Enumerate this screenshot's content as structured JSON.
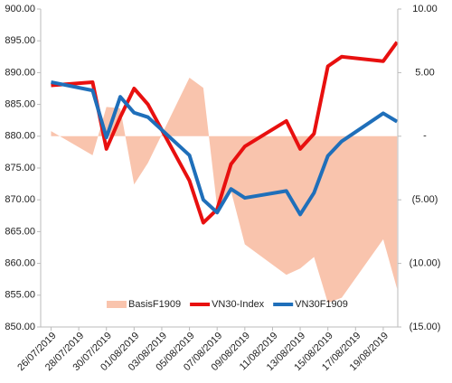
{
  "chart_data": {
    "type": "combo",
    "x": [
      "26/07/2019",
      "29/07/2019",
      "30/07/2019",
      "31/07/2019",
      "01/08/2019",
      "02/08/2019",
      "05/08/2019",
      "06/08/2019",
      "07/08/2019",
      "08/08/2019",
      "09/08/2019",
      "12/08/2019",
      "13/08/2019",
      "14/08/2019",
      "15/08/2019",
      "16/08/2019",
      "19/08/2019",
      "20/08/2019"
    ],
    "xticks": [
      "26/07/2019",
      "28/07/2019",
      "30/07/2019",
      "01/08/2019",
      "03/08/2019",
      "05/08/2019",
      "07/08/2019",
      "09/08/2019",
      "11/08/2019",
      "13/08/2019",
      "15/08/2019",
      "17/08/2019",
      "19/08/2019"
    ],
    "ylim": [
      850,
      900
    ],
    "yticks": [
      {
        "value": 850,
        "label": "850.00"
      },
      {
        "value": 855,
        "label": "855.00"
      },
      {
        "value": 860,
        "label": "860.00"
      },
      {
        "value": 865,
        "label": "865.00"
      },
      {
        "value": 870,
        "label": "870.00"
      },
      {
        "value": 875,
        "label": "875.00"
      },
      {
        "value": 880,
        "label": "880.00"
      },
      {
        "value": 885,
        "label": "885.00"
      },
      {
        "value": 890,
        "label": "890.00"
      },
      {
        "value": 895,
        "label": "895.00"
      },
      {
        "value": 900,
        "label": "900.00"
      }
    ],
    "y2lim": [
      -15,
      10
    ],
    "y2ticks": [
      {
        "value": -15,
        "label": "(15.00)"
      },
      {
        "value": -10,
        "label": "(10.00)"
      },
      {
        "value": -5,
        "label": "(5.00)"
      },
      {
        "value": 0,
        "label": "-"
      },
      {
        "value": 5,
        "label": "5.00"
      },
      {
        "value": 10,
        "label": "10.00"
      }
    ],
    "legend": "bottom",
    "series": [
      {
        "name": "BasisF1909",
        "type": "area",
        "axis": "y2",
        "color": "#f9c4ad",
        "values": [
          0.4,
          -1.5,
          2.3,
          2.2,
          -3.8,
          -2.1,
          4.6,
          3.8,
          -5.6,
          -4.3,
          -8.5,
          -10.9,
          -10.4,
          -9.5,
          -13.1,
          -12.7,
          -8.1,
          -12
        ]
      },
      {
        "name": "VN30-Index",
        "type": "line",
        "color": "#e8100f",
        "values": [
          888,
          888.5,
          878,
          883,
          887.5,
          885,
          873,
          866.4,
          868.5,
          875.6,
          878.4,
          882.4,
          878,
          880.4,
          891,
          892.5,
          891.8,
          894.8
        ]
      },
      {
        "name": "VN30F1909",
        "type": "line",
        "color": "#1f6fba",
        "values": [
          888.5,
          887.2,
          879.8,
          886.2,
          883.7,
          883,
          877,
          870,
          868,
          871.7,
          870.3,
          871.4,
          867.7,
          871.1,
          876.9,
          879.2,
          883.6,
          882.3
        ]
      }
    ]
  }
}
